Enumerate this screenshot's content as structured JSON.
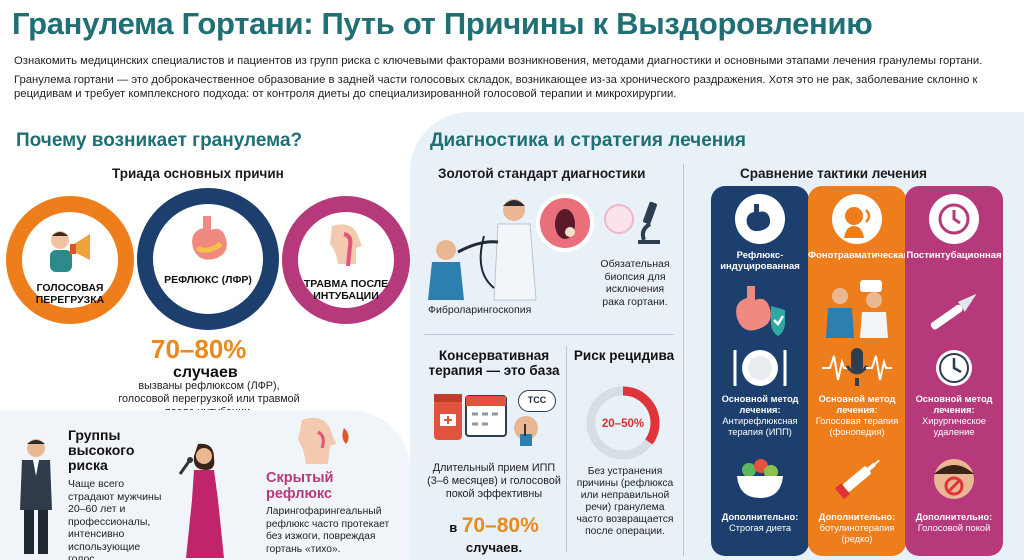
{
  "title": "Гранулема Гортани: Путь от Причины к Выздоровлению",
  "intro_1": "Ознакомить медицинских специалистов и пациентов из групп риска с ключевыми факторами возникновения, методами диагностики и основными этапами лечения гранулемы гортани.",
  "intro_2": "Гранулема гортани — это доброкачественное образование в задней части голосовых складок, возникающее из-за хронического раздражения. Хотя это не рак, заболевание склонно к рецидивам и требует комплексного подхода: от контроля диеты до специализированной голосовой терапии и микрохирургии.",
  "left": {
    "heading": "Почему возникает гранулема?",
    "triad_heading": "Триада основных причин",
    "causes": [
      {
        "label": "ГОЛОСОВАЯ ПЕРЕГРУЗКА",
        "color": "#ee7d1c"
      },
      {
        "label": "РЕФЛЮКС (ЛФР)",
        "color": "#1d3f6e"
      },
      {
        "label": "ТРАВМА ПОСЛЕ ИНТУБАЦИИ",
        "color": "#b63a7b"
      }
    ],
    "stat_pct": "70–80%",
    "stat_word": "случаев",
    "stat_desc": "вызваны рефлюксом (ЛФР), голосовой перегрузкой или травмой после интубации.",
    "risk_heading": "Группы высокого риска",
    "risk_desc": "Чаще всего страдают мужчины 20–60 лет и профессионалы, интенсивно использующие голос.",
    "hidden_heading": "Скрытый рефлюкс",
    "hidden_desc": "Ларингофарингеальный рефлюкс часто протекает без изжоги, повреждая гортань «тихо»."
  },
  "right": {
    "heading": "Диагностика и стратегия лечения",
    "gold_heading": "Золотой стандарт диагностики",
    "fibro_label": "Фиброларингоскопия",
    "biopsy_desc": "Обязательная биопсия для исключения рака гортани.",
    "conservative_heading": "Консервативная терапия — это база",
    "tss_label": "ТСС",
    "conservative_desc": "Длительный прием ИПП (3–6 месяцев) и голосовой покой эффективны",
    "conservative_pct_prefix": "в",
    "conservative_pct": "70–80%",
    "conservative_suffix": "случаев.",
    "recurrence_heading": "Риск рецидива",
    "recurrence_value": "20–50%",
    "recurrence_fraction": 0.35,
    "recurrence_desc": "Без устранения причины (рефлюкса или неправильной речи) гранулема часто возвращается после операции.",
    "compare_heading": "Сравнение тактики лечения",
    "tactics": [
      {
        "name": "Рефлюкс-индуцированная",
        "color": "#1d3f6e",
        "method_label": "Основной метод лечения:",
        "method": "Антирефлюксная терапия (ИПП)",
        "extra_label": "Дополнительно:",
        "extra": "Строгая диета"
      },
      {
        "name": "Фонотравматическая",
        "color": "#ee7d1c",
        "method_label": "Основной метод лечения:",
        "method": "Голосовая терапия (фонопедия)",
        "extra_label": "Дополнительно:",
        "extra": "ботулинотерапия (редко)"
      },
      {
        "name": "Постинтубационная",
        "color": "#b63a7b",
        "method_label": "Основной метод лечения:",
        "method": "Хирургическое удаление",
        "extra_label": "Дополнительно:",
        "extra": "Голосовой покой"
      }
    ]
  }
}
